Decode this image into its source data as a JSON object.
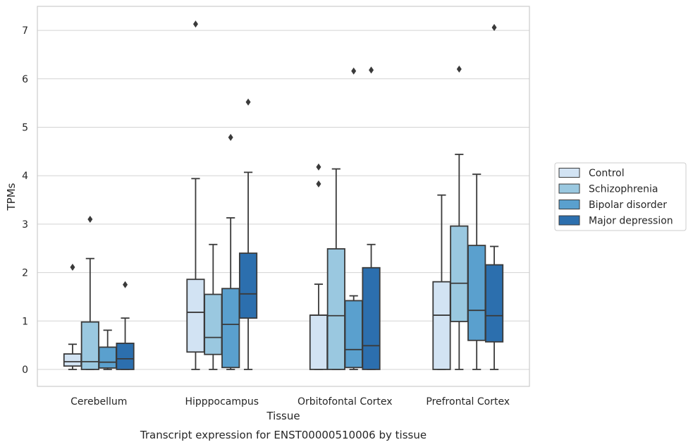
{
  "caption": "Transcript expression for ENST00000510006 by tissue",
  "chart_data": {
    "type": "box",
    "xlabel": "Tissue",
    "ylabel": "TPMs",
    "ylim": [
      -0.35,
      7.5
    ],
    "yticks": [
      "0",
      "1",
      "2",
      "3",
      "4",
      "5",
      "6",
      "7"
    ],
    "grid": "horizontal",
    "legend_position": "center-right",
    "categories": [
      "Cerebellum",
      "Hipppocampus",
      "Orbitofontal Cortex",
      "Prefrontal Cortex"
    ],
    "series": [
      {
        "name": "Control",
        "color": "#d2e3f3",
        "boxes": [
          {
            "whislo": 0.0,
            "q1": 0.07,
            "med": 0.16,
            "q3": 0.32,
            "whishi": 0.52,
            "fliers": [
              2.11
            ]
          },
          {
            "whislo": 0.0,
            "q1": 0.36,
            "med": 1.18,
            "q3": 1.86,
            "whishi": 3.94,
            "fliers": [
              7.13
            ]
          },
          {
            "whislo": 0.0,
            "q1": 0.0,
            "med": 1.12,
            "q3": 1.12,
            "whishi": 1.76,
            "fliers": [
              3.83,
              4.18
            ]
          },
          {
            "whislo": 0.0,
            "q1": 0.0,
            "med": 1.12,
            "q3": 1.81,
            "whishi": 3.6,
            "fliers": []
          }
        ]
      },
      {
        "name": "Schizophrenia",
        "color": "#9ac8e0",
        "boxes": [
          {
            "whislo": 0.0,
            "q1": 0.0,
            "med": 0.16,
            "q3": 0.98,
            "whishi": 2.29,
            "fliers": [
              3.1
            ]
          },
          {
            "whislo": 0.0,
            "q1": 0.31,
            "med": 0.66,
            "q3": 1.55,
            "whishi": 2.58,
            "fliers": []
          },
          {
            "whislo": 0.0,
            "q1": 0.0,
            "med": 1.11,
            "q3": 2.49,
            "whishi": 4.14,
            "fliers": []
          },
          {
            "whislo": 0.0,
            "q1": 0.99,
            "med": 1.78,
            "q3": 2.96,
            "whishi": 4.44,
            "fliers": [
              6.2
            ]
          }
        ]
      },
      {
        "name": "Bipolar disorder",
        "color": "#5aa0ce",
        "boxes": [
          {
            "whislo": 0.0,
            "q1": 0.03,
            "med": 0.15,
            "q3": 0.46,
            "whishi": 0.81,
            "fliers": []
          },
          {
            "whislo": 0.0,
            "q1": 0.04,
            "med": 0.93,
            "q3": 1.67,
            "whishi": 3.13,
            "fliers": [
              4.79
            ]
          },
          {
            "whislo": 0.0,
            "q1": 0.04,
            "med": 0.41,
            "q3": 1.42,
            "whishi": 1.52,
            "fliers": [
              6.16
            ]
          },
          {
            "whislo": 0.0,
            "q1": 0.6,
            "med": 1.22,
            "q3": 2.56,
            "whishi": 4.03,
            "fliers": []
          }
        ]
      },
      {
        "name": "Major depression",
        "color": "#2c6fae",
        "boxes": [
          {
            "whislo": 0.0,
            "q1": 0.0,
            "med": 0.22,
            "q3": 0.54,
            "whishi": 1.06,
            "fliers": [
              1.75
            ]
          },
          {
            "whislo": 0.0,
            "q1": 1.06,
            "med": 1.56,
            "q3": 2.4,
            "whishi": 4.07,
            "fliers": [
              5.52
            ]
          },
          {
            "whislo": 0.0,
            "q1": 0.0,
            "med": 0.49,
            "q3": 2.1,
            "whishi": 2.58,
            "fliers": [
              6.18
            ]
          },
          {
            "whislo": 0.0,
            "q1": 0.57,
            "med": 1.11,
            "q3": 2.16,
            "whishi": 2.54,
            "fliers": [
              7.06
            ]
          }
        ]
      }
    ]
  }
}
